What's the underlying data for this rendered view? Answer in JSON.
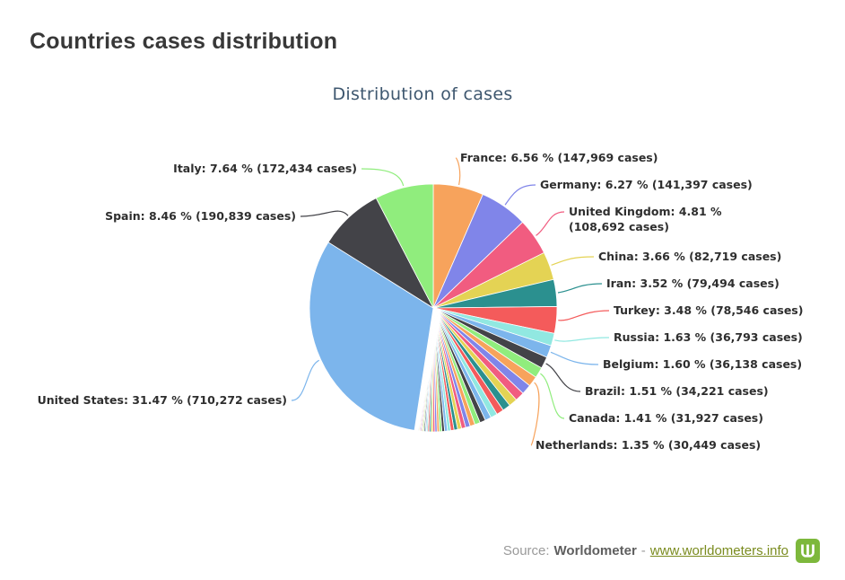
{
  "page": {
    "title": "Countries cases distribution"
  },
  "chart_data": {
    "type": "pie",
    "title": "Distribution of cases",
    "label_format": "{name}: {percent} % ({cases} cases)",
    "slices": [
      {
        "name": "United States",
        "percent": "31.47",
        "cases": "710,272",
        "color": "#7cb5ec"
      },
      {
        "name": "Spain",
        "percent": "8.46",
        "cases": "190,839",
        "color": "#434348"
      },
      {
        "name": "Italy",
        "percent": "7.64",
        "cases": "172,434",
        "color": "#90ed7d"
      },
      {
        "name": "France",
        "percent": "6.56",
        "cases": "147,969",
        "color": "#f7a35c"
      },
      {
        "name": "Germany",
        "percent": "6.27",
        "cases": "141,397",
        "color": "#8085e9"
      },
      {
        "name": "United Kingdom",
        "percent": "4.81",
        "cases": "108,692",
        "color": "#f15c80"
      },
      {
        "name": "China",
        "percent": "3.66",
        "cases": "82,719",
        "color": "#e4d354"
      },
      {
        "name": "Iran",
        "percent": "3.52",
        "cases": "79,494",
        "color": "#2b908f"
      },
      {
        "name": "Turkey",
        "percent": "3.48",
        "cases": "78,546",
        "color": "#f45b5b"
      },
      {
        "name": "Russia",
        "percent": "1.63",
        "cases": "36,793",
        "color": "#91e8e1"
      },
      {
        "name": "Belgium",
        "percent": "1.60",
        "cases": "36,138",
        "color": "#7cb5ec"
      },
      {
        "name": "Brazil",
        "percent": "1.51",
        "cases": "34,221",
        "color": "#434348"
      },
      {
        "name": "Canada",
        "percent": "1.41",
        "cases": "31,927",
        "color": "#90ed7d"
      },
      {
        "name": "Netherlands",
        "percent": "1.35",
        "cases": "30,449",
        "color": "#f7a35c"
      }
    ],
    "unlabeled_tail": {
      "description": "remaining smaller countries shown as unlabeled thin slices",
      "total_percent": 16.63,
      "percents": [
        1.3,
        1.2,
        1.11,
        1.03,
        0.95,
        0.88,
        0.81,
        0.75,
        0.7,
        0.65,
        0.6,
        0.55,
        0.51,
        0.47,
        0.44,
        0.41,
        0.38,
        0.35,
        0.32,
        0.3,
        0.28,
        0.26,
        0.24,
        0.22,
        0.2,
        0.175,
        0.17,
        0.16,
        0.15,
        0.14,
        0.13,
        0.12,
        0.11,
        0.1,
        0.09,
        0.085,
        0.08,
        0.075,
        0.07,
        0.065
      ]
    },
    "palette": [
      "#7cb5ec",
      "#434348",
      "#90ed7d",
      "#f7a35c",
      "#8085e9",
      "#f15c80",
      "#e4d354",
      "#2b908f",
      "#f45b5b",
      "#91e8e1"
    ],
    "legend": "off",
    "label_text_color": "#2e2e2e",
    "title_color": "#3e576f"
  },
  "footer": {
    "source_label": "Source:",
    "source_name": "Worldometer",
    "separator": "-",
    "link_text": "www.worldometers.info",
    "link_color": "#7a8b1e",
    "logo_color": "#7db83c"
  }
}
